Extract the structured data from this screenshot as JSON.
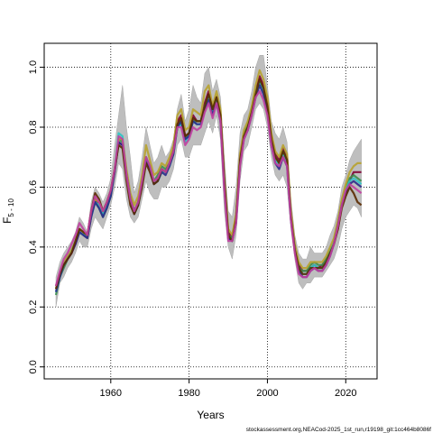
{
  "chart_data": {
    "type": "line",
    "xlabel": "Years",
    "ylabel_main": "F",
    "ylabel_sub": "5 - 10",
    "xlim": [
      1943,
      2028
    ],
    "ylim": [
      -0.04,
      1.08
    ],
    "x_ticks": [
      1960,
      1980,
      2000,
      2020
    ],
    "y_ticks": [
      0.0,
      0.2,
      0.4,
      0.6,
      0.8,
      1.0
    ],
    "grid": true,
    "grid_style": "dotted",
    "band_color": "#bebebe",
    "x": [
      1946,
      1947,
      1948,
      1949,
      1950,
      1951,
      1952,
      1953,
      1954,
      1955,
      1956,
      1957,
      1958,
      1959,
      1960,
      1961,
      1962,
      1963,
      1964,
      1965,
      1966,
      1967,
      1968,
      1969,
      1970,
      1971,
      1972,
      1973,
      1974,
      1975,
      1976,
      1977,
      1978,
      1979,
      1980,
      1981,
      1982,
      1983,
      1984,
      1985,
      1986,
      1987,
      1988,
      1989,
      1990,
      1991,
      1992,
      1993,
      1994,
      1995,
      1996,
      1997,
      1998,
      1999,
      2000,
      2001,
      2002,
      2003,
      2004,
      2005,
      2006,
      2007,
      2008,
      2009,
      2010,
      2011,
      2012,
      2013,
      2014,
      2015,
      2016,
      2017,
      2018,
      2019,
      2020,
      2021,
      2022,
      2023,
      2024
    ],
    "band_upper": [
      0.3,
      0.35,
      0.38,
      0.4,
      0.42,
      0.45,
      0.5,
      0.48,
      0.45,
      0.55,
      0.6,
      0.58,
      0.55,
      0.58,
      0.63,
      0.74,
      0.84,
      0.94,
      0.8,
      0.7,
      0.58,
      0.62,
      0.7,
      0.8,
      0.74,
      0.68,
      0.7,
      0.74,
      0.7,
      0.72,
      0.76,
      0.86,
      0.91,
      0.82,
      0.86,
      0.94,
      0.9,
      0.88,
      0.98,
      1.0,
      0.92,
      0.96,
      0.9,
      0.7,
      0.52,
      0.5,
      0.6,
      0.78,
      0.84,
      0.86,
      0.92,
      1.0,
      1.04,
      1.04,
      0.94,
      0.82,
      0.78,
      0.76,
      0.8,
      0.75,
      0.56,
      0.44,
      0.38,
      0.36,
      0.36,
      0.4,
      0.38,
      0.38,
      0.38,
      0.4,
      0.44,
      0.47,
      0.52,
      0.6,
      0.64,
      0.69,
      0.72,
      0.74,
      0.76
    ],
    "band_lower": [
      0.2,
      0.28,
      0.3,
      0.33,
      0.35,
      0.38,
      0.42,
      0.4,
      0.4,
      0.46,
      0.5,
      0.48,
      0.46,
      0.5,
      0.54,
      0.6,
      0.68,
      0.66,
      0.56,
      0.5,
      0.48,
      0.5,
      0.56,
      0.62,
      0.58,
      0.56,
      0.56,
      0.6,
      0.6,
      0.62,
      0.66,
      0.74,
      0.76,
      0.7,
      0.7,
      0.74,
      0.74,
      0.74,
      0.78,
      0.82,
      0.78,
      0.84,
      0.76,
      0.52,
      0.4,
      0.36,
      0.44,
      0.62,
      0.72,
      0.74,
      0.8,
      0.86,
      0.88,
      0.86,
      0.8,
      0.7,
      0.64,
      0.62,
      0.64,
      0.6,
      0.46,
      0.36,
      0.28,
      0.26,
      0.28,
      0.28,
      0.3,
      0.3,
      0.3,
      0.32,
      0.34,
      0.36,
      0.4,
      0.46,
      0.5,
      0.52,
      0.54,
      0.53,
      0.5
    ],
    "series": [
      {
        "color": "#7f0033",
        "values": [
          0.27,
          0.31,
          0.34,
          0.36,
          0.38,
          0.41,
          0.45,
          0.44,
          0.43,
          0.5,
          0.56,
          0.54,
          0.51,
          0.54,
          0.58,
          0.65,
          0.75,
          0.74,
          0.64,
          0.56,
          0.52,
          0.55,
          0.62,
          0.7,
          0.66,
          0.62,
          0.63,
          0.66,
          0.65,
          0.68,
          0.72,
          0.82,
          0.84,
          0.77,
          0.78,
          0.84,
          0.82,
          0.82,
          0.88,
          0.92,
          0.86,
          0.9,
          0.84,
          0.62,
          0.45,
          0.43,
          0.5,
          0.7,
          0.78,
          0.8,
          0.86,
          0.92,
          0.97,
          0.94,
          0.88,
          0.77,
          0.71,
          0.69,
          0.73,
          0.7,
          0.5,
          0.4,
          0.34,
          0.32,
          0.32,
          0.33,
          0.34,
          0.33,
          0.34,
          0.36,
          0.38,
          0.41,
          0.46,
          0.54,
          0.58,
          0.62,
          0.65,
          0.65,
          0.65
        ]
      },
      {
        "color": "#3a8f4e",
        "values": [
          0.24,
          0.3,
          0.33,
          0.36,
          0.39,
          0.42,
          0.46,
          0.45,
          0.43,
          0.51,
          0.55,
          0.53,
          0.5,
          0.53,
          0.57,
          0.66,
          0.76,
          0.75,
          0.65,
          0.57,
          0.52,
          0.55,
          0.62,
          0.7,
          0.67,
          0.62,
          0.64,
          0.67,
          0.66,
          0.68,
          0.72,
          0.8,
          0.82,
          0.76,
          0.78,
          0.82,
          0.82,
          0.82,
          0.86,
          0.9,
          0.86,
          0.9,
          0.84,
          0.61,
          0.44,
          0.43,
          0.49,
          0.69,
          0.78,
          0.81,
          0.86,
          0.92,
          0.95,
          0.93,
          0.87,
          0.76,
          0.7,
          0.68,
          0.72,
          0.69,
          0.5,
          0.4,
          0.33,
          0.32,
          0.32,
          0.34,
          0.35,
          0.34,
          0.34,
          0.36,
          0.39,
          0.42,
          0.48,
          0.55,
          0.6,
          0.63,
          0.64,
          0.63,
          0.62
        ]
      },
      {
        "color": "#2ec4c4",
        "values": [
          0.25,
          0.3,
          0.34,
          0.37,
          0.39,
          0.42,
          0.45,
          0.44,
          0.44,
          0.5,
          0.55,
          0.54,
          0.51,
          0.54,
          0.58,
          0.66,
          0.78,
          0.77,
          0.65,
          0.56,
          0.51,
          0.54,
          0.61,
          0.69,
          0.66,
          0.61,
          0.62,
          0.65,
          0.65,
          0.67,
          0.71,
          0.8,
          0.81,
          0.75,
          0.77,
          0.82,
          0.81,
          0.81,
          0.87,
          0.9,
          0.85,
          0.89,
          0.82,
          0.6,
          0.43,
          0.42,
          0.49,
          0.68,
          0.77,
          0.79,
          0.85,
          0.91,
          0.95,
          0.92,
          0.86,
          0.75,
          0.69,
          0.67,
          0.71,
          0.68,
          0.5,
          0.4,
          0.33,
          0.31,
          0.31,
          0.33,
          0.34,
          0.33,
          0.33,
          0.35,
          0.38,
          0.42,
          0.48,
          0.55,
          0.59,
          0.62,
          0.63,
          0.62,
          0.61
        ]
      },
      {
        "color": "#b7a22e",
        "values": [
          0.26,
          0.31,
          0.35,
          0.37,
          0.39,
          0.42,
          0.46,
          0.45,
          0.44,
          0.51,
          0.56,
          0.55,
          0.52,
          0.55,
          0.59,
          0.66,
          0.76,
          0.76,
          0.66,
          0.58,
          0.54,
          0.57,
          0.64,
          0.74,
          0.69,
          0.64,
          0.65,
          0.68,
          0.67,
          0.7,
          0.74,
          0.84,
          0.86,
          0.79,
          0.8,
          0.86,
          0.85,
          0.84,
          0.92,
          0.94,
          0.87,
          0.92,
          0.86,
          0.63,
          0.46,
          0.44,
          0.51,
          0.71,
          0.79,
          0.82,
          0.87,
          0.94,
          0.99,
          0.96,
          0.9,
          0.78,
          0.72,
          0.7,
          0.74,
          0.71,
          0.52,
          0.41,
          0.35,
          0.33,
          0.33,
          0.35,
          0.35,
          0.35,
          0.35,
          0.37,
          0.4,
          0.43,
          0.49,
          0.56,
          0.61,
          0.65,
          0.67,
          0.68,
          0.68
        ]
      },
      {
        "color": "#2a2a8a",
        "values": [
          0.25,
          0.3,
          0.34,
          0.36,
          0.38,
          0.41,
          0.45,
          0.44,
          0.43,
          0.5,
          0.55,
          0.53,
          0.5,
          0.53,
          0.57,
          0.65,
          0.75,
          0.74,
          0.64,
          0.56,
          0.51,
          0.54,
          0.61,
          0.69,
          0.66,
          0.61,
          0.62,
          0.65,
          0.64,
          0.67,
          0.71,
          0.8,
          0.82,
          0.76,
          0.77,
          0.82,
          0.81,
          0.81,
          0.86,
          0.89,
          0.84,
          0.88,
          0.82,
          0.6,
          0.43,
          0.42,
          0.48,
          0.68,
          0.76,
          0.79,
          0.84,
          0.9,
          0.94,
          0.91,
          0.85,
          0.74,
          0.68,
          0.66,
          0.7,
          0.67,
          0.49,
          0.39,
          0.32,
          0.3,
          0.3,
          0.32,
          0.33,
          0.32,
          0.32,
          0.34,
          0.37,
          0.41,
          0.47,
          0.54,
          0.58,
          0.61,
          0.62,
          0.61,
          0.6
        ]
      },
      {
        "color": "#5a2a00",
        "values": [
          0.26,
          0.31,
          0.34,
          0.36,
          0.38,
          0.42,
          0.46,
          0.45,
          0.44,
          0.52,
          0.58,
          0.56,
          0.52,
          0.55,
          0.59,
          0.66,
          0.74,
          0.73,
          0.62,
          0.54,
          0.51,
          0.54,
          0.6,
          0.68,
          0.65,
          0.61,
          0.62,
          0.66,
          0.65,
          0.68,
          0.72,
          0.81,
          0.83,
          0.77,
          0.78,
          0.83,
          0.82,
          0.82,
          0.87,
          0.91,
          0.86,
          0.9,
          0.84,
          0.62,
          0.44,
          0.42,
          0.49,
          0.69,
          0.77,
          0.8,
          0.85,
          0.91,
          0.96,
          0.93,
          0.87,
          0.76,
          0.7,
          0.68,
          0.72,
          0.69,
          0.5,
          0.39,
          0.33,
          0.31,
          0.31,
          0.33,
          0.33,
          0.33,
          0.33,
          0.35,
          0.38,
          0.41,
          0.46,
          0.53,
          0.57,
          0.6,
          0.58,
          0.55,
          0.54
        ]
      },
      {
        "color": "#c040a0",
        "values": [
          0.27,
          0.32,
          0.36,
          0.38,
          0.41,
          0.44,
          0.48,
          0.46,
          0.44,
          0.52,
          0.57,
          0.55,
          0.52,
          0.55,
          0.59,
          0.66,
          0.77,
          0.76,
          0.64,
          0.56,
          0.52,
          0.55,
          0.62,
          0.7,
          0.67,
          0.62,
          0.63,
          0.66,
          0.65,
          0.68,
          0.72,
          0.8,
          0.8,
          0.74,
          0.76,
          0.8,
          0.79,
          0.8,
          0.85,
          0.88,
          0.83,
          0.88,
          0.82,
          0.59,
          0.42,
          0.42,
          0.48,
          0.67,
          0.76,
          0.79,
          0.84,
          0.9,
          0.92,
          0.89,
          0.84,
          0.74,
          0.68,
          0.67,
          0.7,
          0.67,
          0.49,
          0.38,
          0.31,
          0.3,
          0.3,
          0.32,
          0.33,
          0.32,
          0.32,
          0.34,
          0.37,
          0.41,
          0.47,
          0.54,
          0.59,
          0.61,
          0.6,
          0.59,
          0.58
        ]
      }
    ]
  },
  "credit_text": "stockassessment.org,NEACod-2025_1st_run,r19198_git:1cc464b8086f"
}
